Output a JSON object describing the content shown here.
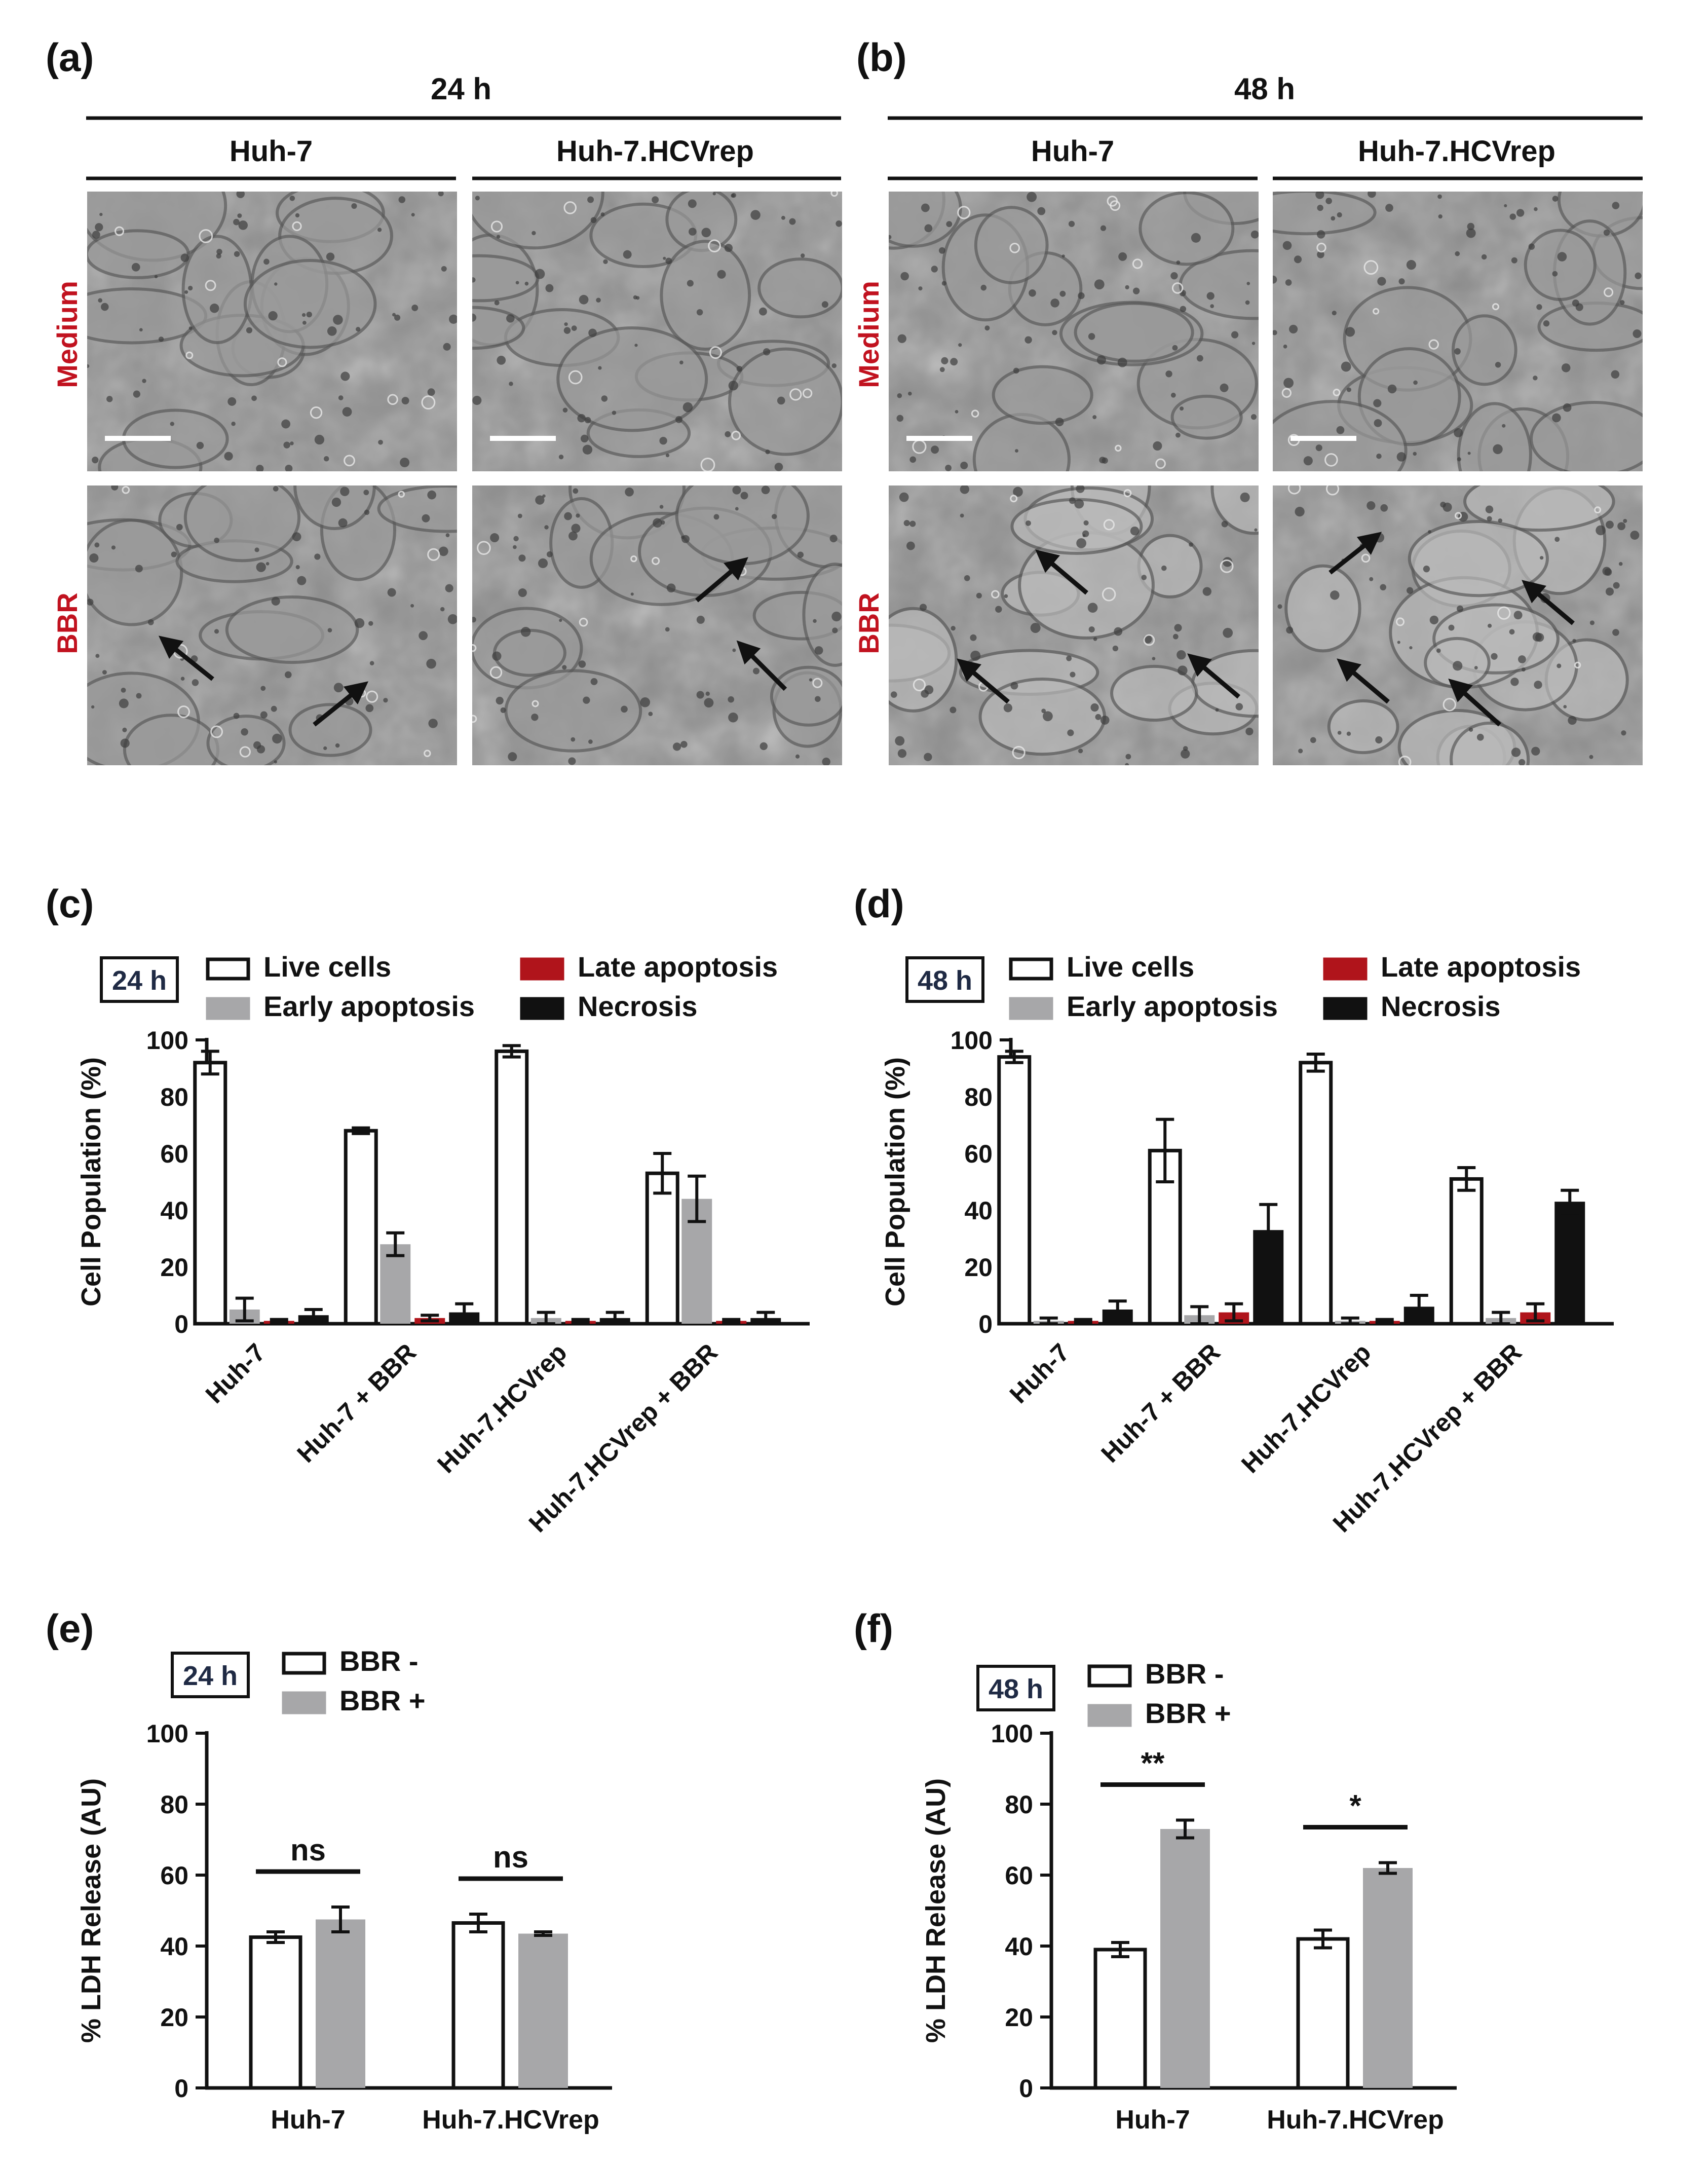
{
  "figure": {
    "panels": {
      "a": "(a)",
      "b": "(b)",
      "c": "(c)",
      "d": "(d)",
      "e": "(e)",
      "f": "(f)"
    },
    "micrographs": [
      {
        "panel_label": "(a)",
        "time": "24 h",
        "columns": [
          "Huh-7",
          "Huh-7.HCVrep"
        ],
        "rows": [
          "Medium",
          "BBR"
        ]
      },
      {
        "panel_label": "(b)",
        "time": "48 h",
        "columns": [
          "Huh-7",
          "Huh-7.HCVrep"
        ],
        "rows": [
          "Medium",
          "BBR"
        ]
      }
    ],
    "colors": {
      "row_label": "#c1121f",
      "white_bar": "#ffffff",
      "gray_bar": "#a7a7a9",
      "red_bar": "#b0141b",
      "black_bar": "#111111",
      "axis": "#111111",
      "badge_text": "#1f2a44"
    }
  },
  "chart_data": [
    {
      "panel": "(c)",
      "type": "bar",
      "badge": "24 h",
      "ylabel": "Cell Population (%)",
      "ylim": [
        0,
        100
      ],
      "yticks": [
        "0",
        "20",
        "40",
        "60",
        "80",
        "100"
      ],
      "categories": [
        "Huh-7",
        "Huh-7 + BBR",
        "Huh-7.HCVrep",
        "Huh-7.HCVrep + BBR"
      ],
      "series": [
        {
          "name": "Live cells",
          "color": "#ffffff",
          "values": [
            92,
            68,
            96,
            53
          ],
          "err": [
            4,
            1,
            2,
            7
          ]
        },
        {
          "name": "Early apoptosis",
          "color": "#a7a7a9",
          "values": [
            5,
            28,
            2,
            44
          ],
          "err": [
            4,
            4,
            2,
            8
          ]
        },
        {
          "name": "Late apoptosis",
          "color": "#b0141b",
          "values": [
            1,
            2,
            1,
            1
          ],
          "err": [
            0.5,
            1,
            0.5,
            0.5
          ]
        },
        {
          "name": "Necrosis",
          "color": "#111111",
          "values": [
            3,
            4,
            2,
            2
          ],
          "err": [
            2,
            3,
            2,
            2
          ]
        }
      ],
      "legend": [
        "Live cells",
        "Early apoptosis",
        "Late apoptosis",
        "Necrosis"
      ],
      "legend_position": "top"
    },
    {
      "panel": "(d)",
      "type": "bar",
      "badge": "48 h",
      "ylabel": "Cell Population (%)",
      "ylim": [
        0,
        100
      ],
      "yticks": [
        "0",
        "20",
        "40",
        "60",
        "80",
        "100"
      ],
      "categories": [
        "Huh-7",
        "Huh-7 + BBR",
        "Huh-7.HCVrep",
        "Huh-7.HCVrep + BBR"
      ],
      "series": [
        {
          "name": "Live cells",
          "color": "#ffffff",
          "values": [
            94,
            61,
            92,
            51
          ],
          "err": [
            2,
            11,
            3,
            4
          ]
        },
        {
          "name": "Early apoptosis",
          "color": "#a7a7a9",
          "values": [
            1,
            3,
            1,
            2
          ],
          "err": [
            1,
            3,
            1,
            2
          ]
        },
        {
          "name": "Late apoptosis",
          "color": "#b0141b",
          "values": [
            1,
            4,
            1,
            4
          ],
          "err": [
            0.5,
            3,
            0.5,
            3
          ]
        },
        {
          "name": "Necrosis",
          "color": "#111111",
          "values": [
            5,
            33,
            6,
            43
          ],
          "err": [
            3,
            9,
            4,
            4
          ]
        }
      ],
      "legend": [
        "Live cells",
        "Early apoptosis",
        "Late apoptosis",
        "Necrosis"
      ],
      "legend_position": "top"
    },
    {
      "panel": "(e)",
      "type": "bar",
      "badge": "24 h",
      "ylabel": "% LDH Release (AU)",
      "ylim": [
        0,
        100
      ],
      "yticks": [
        "0",
        "20",
        "40",
        "60",
        "80",
        "100"
      ],
      "categories": [
        "Huh-7",
        "Huh-7.HCVrep"
      ],
      "series": [
        {
          "name": "BBR -",
          "color": "#ffffff",
          "values": [
            42.5,
            46.5
          ],
          "err": [
            1.5,
            2.5
          ]
        },
        {
          "name": "BBR +",
          "color": "#a7a7a9",
          "values": [
            47.5,
            43.5
          ],
          "err": [
            3.5,
            0.5
          ]
        }
      ],
      "significance": [
        "ns",
        "ns"
      ],
      "legend": [
        "BBR -",
        "BBR +"
      ],
      "legend_position": "top-left"
    },
    {
      "panel": "(f)",
      "type": "bar",
      "badge": "48 h",
      "ylabel": "% LDH Release (AU)",
      "ylim": [
        0,
        100
      ],
      "yticks": [
        "0",
        "20",
        "40",
        "60",
        "80",
        "100"
      ],
      "categories": [
        "Huh-7",
        "Huh-7.HCVrep"
      ],
      "series": [
        {
          "name": "BBR -",
          "color": "#ffffff",
          "values": [
            39,
            42
          ],
          "err": [
            2,
            2.5
          ]
        },
        {
          "name": "BBR +",
          "color": "#a7a7a9",
          "values": [
            73,
            62
          ],
          "err": [
            2.5,
            1.5
          ]
        }
      ],
      "significance": [
        "**",
        "*"
      ],
      "legend": [
        "BBR -",
        "BBR +"
      ],
      "legend_position": "top-left"
    }
  ]
}
